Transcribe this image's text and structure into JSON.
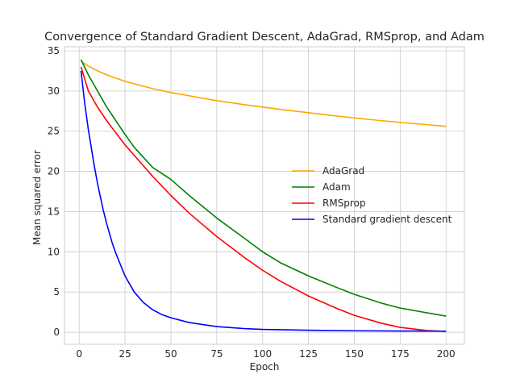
{
  "chart_data": {
    "type": "line",
    "title": "Convergence of Standard Gradient Descent, AdaGrad, RMSprop, and Adam",
    "xlabel": "Epoch",
    "ylabel": "Mean squared error",
    "xlim": [
      -8,
      210
    ],
    "ylim": [
      -1.5,
      35.5
    ],
    "xticks": [
      0,
      25,
      50,
      75,
      100,
      125,
      150,
      175,
      200
    ],
    "yticks": [
      0,
      5,
      10,
      15,
      20,
      25,
      30,
      35
    ],
    "grid": true,
    "legend_position": "center-right",
    "series": [
      {
        "name": "AdaGrad",
        "color": "#ffa500",
        "x": [
          1,
          5,
          10,
          15,
          20,
          25,
          30,
          40,
          50,
          60,
          75,
          90,
          100,
          110,
          125,
          140,
          150,
          165,
          175,
          190,
          200
        ],
        "y": [
          33.7,
          33.1,
          32.5,
          32.0,
          31.6,
          31.2,
          30.9,
          30.3,
          29.8,
          29.4,
          28.8,
          28.3,
          28.0,
          27.7,
          27.3,
          26.9,
          26.65,
          26.3,
          26.1,
          25.8,
          25.6
        ]
      },
      {
        "name": "Adam",
        "color": "#008000",
        "x": [
          1,
          5,
          10,
          15,
          20,
          25,
          30,
          40,
          50,
          60,
          75,
          90,
          100,
          110,
          125,
          140,
          150,
          165,
          175,
          190,
          200
        ],
        "y": [
          33.9,
          32.0,
          30.0,
          28.0,
          26.3,
          24.6,
          23.0,
          20.5,
          19.0,
          17.0,
          14.2,
          11.7,
          10.0,
          8.6,
          7.0,
          5.6,
          4.7,
          3.6,
          3.0,
          2.4,
          2.0
        ]
      },
      {
        "name": "RMSprop",
        "color": "#ff0000",
        "x": [
          1,
          5,
          10,
          15,
          20,
          25,
          30,
          40,
          50,
          60,
          75,
          90,
          100,
          110,
          125,
          140,
          150,
          165,
          175,
          190,
          200
        ],
        "y": [
          33.0,
          30.0,
          28.0,
          26.3,
          24.8,
          23.3,
          22.0,
          19.4,
          17.0,
          14.8,
          11.9,
          9.3,
          7.7,
          6.3,
          4.5,
          3.0,
          2.1,
          1.1,
          0.6,
          0.2,
          0.1
        ]
      },
      {
        "name": "Standard gradient descent",
        "color": "#0000ff",
        "x": [
          1,
          3,
          5,
          8,
          10,
          13,
          15,
          18,
          20,
          25,
          30,
          35,
          40,
          45,
          50,
          60,
          75,
          90,
          100,
          125,
          150,
          175,
          200
        ],
        "y": [
          32.5,
          28.5,
          25.2,
          21.0,
          18.5,
          15.3,
          13.5,
          11.1,
          9.8,
          7.0,
          5.0,
          3.7,
          2.8,
          2.2,
          1.8,
          1.2,
          0.7,
          0.45,
          0.35,
          0.25,
          0.18,
          0.15,
          0.13
        ]
      }
    ]
  }
}
